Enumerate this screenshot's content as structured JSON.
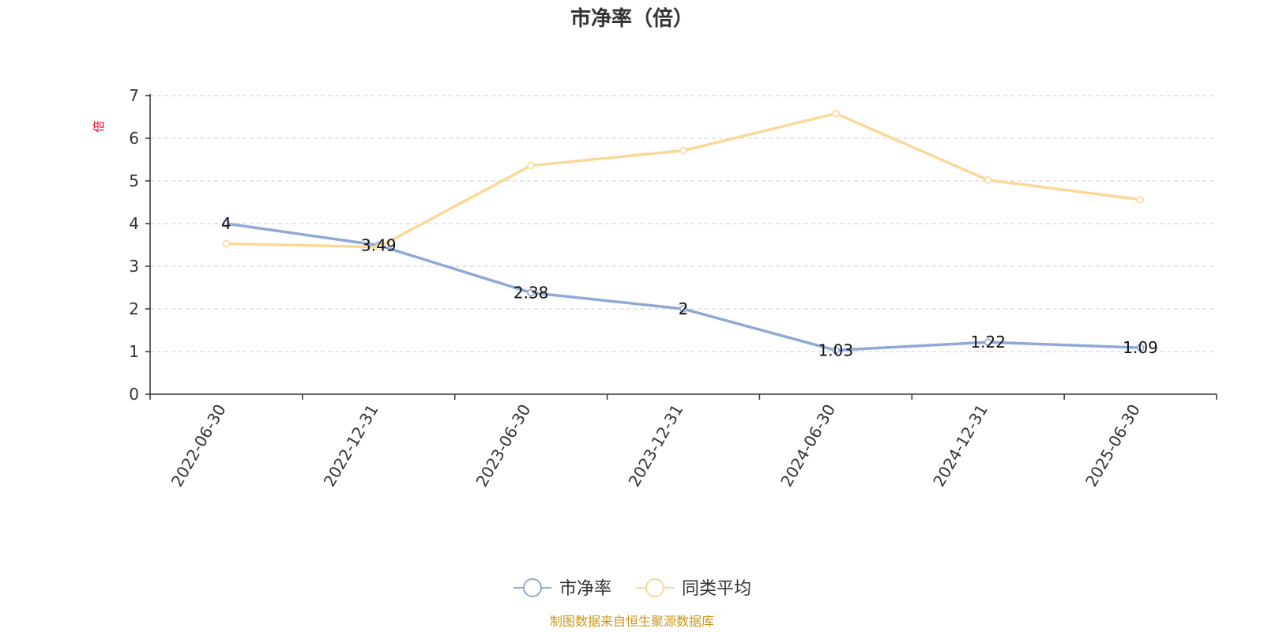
{
  "chart_data": {
    "type": "line",
    "title": "市净率（倍）",
    "ylabel": "倍",
    "ylim": [
      0,
      7
    ],
    "yticks": [
      0,
      1,
      2,
      3,
      4,
      5,
      6,
      7
    ],
    "grid": true,
    "categories": [
      "2022-06-30",
      "2022-12-31",
      "2023-06-30",
      "2023-12-31",
      "2024-06-30",
      "2024-12-31",
      "2025-06-30"
    ],
    "series": [
      {
        "name": "市净率",
        "color": "#8eaad6",
        "values": [
          4,
          3.49,
          2.38,
          2,
          1.03,
          1.22,
          1.09
        ],
        "labels": [
          "4",
          "3.49",
          "2.38",
          "2",
          "1.03",
          "1.22",
          "1.09"
        ],
        "show_labels": true
      },
      {
        "name": "同类平均",
        "color": "#fbd898",
        "values": [
          3.53,
          3.45,
          5.36,
          5.71,
          6.58,
          5.02,
          4.56
        ],
        "show_labels": false
      }
    ],
    "legend": "bottom-center"
  },
  "source": "制图数据来自恒生聚源数据库"
}
